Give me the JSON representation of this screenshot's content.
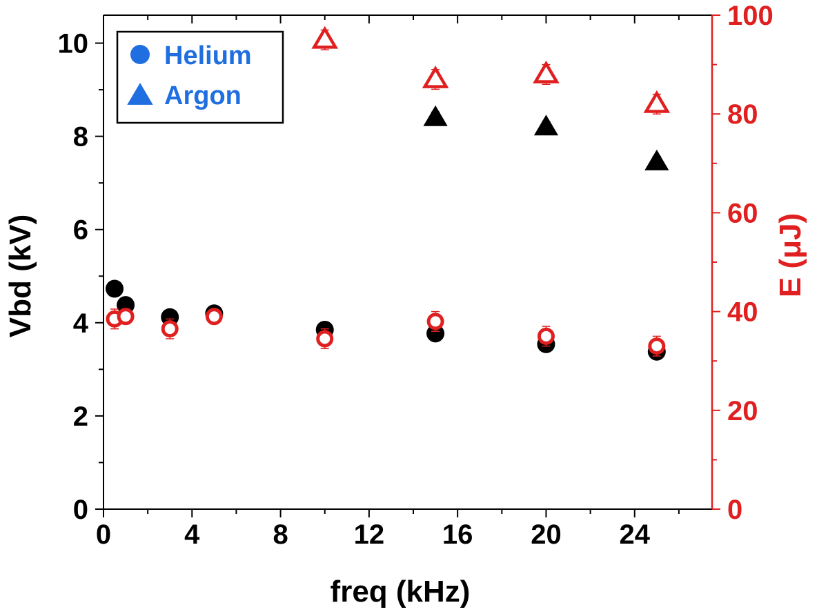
{
  "chart_data": {
    "type": "scatter",
    "xlabel": "freq (kHz)",
    "ylabel_left": "Vbd (kV)",
    "ylabel_right": "E (μJ)",
    "xlim": [
      0,
      27.5
    ],
    "ylim_left": [
      0,
      10.6
    ],
    "ylim_right": [
      0,
      100
    ],
    "x_ticks": [
      0,
      4,
      8,
      12,
      16,
      20,
      24
    ],
    "y_ticks_left": [
      0,
      2,
      4,
      6,
      8,
      10
    ],
    "y_ticks_right": [
      0,
      20,
      40,
      60,
      80,
      100
    ],
    "grid": false,
    "legend_position": "top-left",
    "colors": {
      "left_axis": "#000000",
      "right_axis": "#e02020",
      "legend_text": "#1f6fe0",
      "legend_marker": "#1f6fe0",
      "vbd_markers": "#000000",
      "energy_markers": "#e02020"
    },
    "legend": [
      {
        "label": "Helium",
        "marker": "circle"
      },
      {
        "label": "Argon",
        "marker": "triangle"
      }
    ],
    "series": [
      {
        "gas": "Helium",
        "quantity": "Vbd",
        "axis": "left",
        "marker": "circle",
        "fill": "filled",
        "points": [
          {
            "x": 0.5,
            "y": 4.73,
            "err": 0.05
          },
          {
            "x": 1,
            "y": 4.38,
            "err": 0.05
          },
          {
            "x": 3,
            "y": 4.12,
            "err": 0.05
          },
          {
            "x": 5,
            "y": 4.2,
            "err": 0.05
          },
          {
            "x": 10,
            "y": 3.85,
            "err": 0.05
          },
          {
            "x": 15,
            "y": 3.77,
            "err": 0.05
          },
          {
            "x": 20,
            "y": 3.54,
            "err": 0.05
          },
          {
            "x": 25,
            "y": 3.38,
            "err": 0.05
          }
        ]
      },
      {
        "gas": "Argon",
        "quantity": "Vbd",
        "axis": "left",
        "marker": "triangle",
        "fill": "filled",
        "points": [
          {
            "x": 15,
            "y": 8.4,
            "err": 0.12
          },
          {
            "x": 20,
            "y": 8.2,
            "err": 0.12
          },
          {
            "x": 25,
            "y": 7.45,
            "err": 0.12
          }
        ]
      },
      {
        "gas": "Helium",
        "quantity": "E",
        "axis": "right",
        "marker": "circle",
        "fill": "open",
        "points": [
          {
            "x": 0.5,
            "y": 38.5,
            "err": 2.0
          },
          {
            "x": 1,
            "y": 39.0,
            "err": 1.5
          },
          {
            "x": 3,
            "y": 36.5,
            "err": 2.0
          },
          {
            "x": 5,
            "y": 39.0,
            "err": 1.5
          },
          {
            "x": 10,
            "y": 34.5,
            "err": 2.0
          },
          {
            "x": 15,
            "y": 38.0,
            "err": 2.0
          },
          {
            "x": 20,
            "y": 35.0,
            "err": 2.0
          },
          {
            "x": 25,
            "y": 33.0,
            "err": 2.0
          }
        ]
      },
      {
        "gas": "Argon",
        "quantity": "E",
        "axis": "right",
        "marker": "triangle",
        "fill": "open",
        "points": [
          {
            "x": 10,
            "y": 95.0,
            "err": 2.0
          },
          {
            "x": 15,
            "y": 87.0,
            "err": 2.0
          },
          {
            "x": 20,
            "y": 88.0,
            "err": 2.0
          },
          {
            "x": 25,
            "y": 82.0,
            "err": 2.0
          }
        ]
      }
    ]
  }
}
